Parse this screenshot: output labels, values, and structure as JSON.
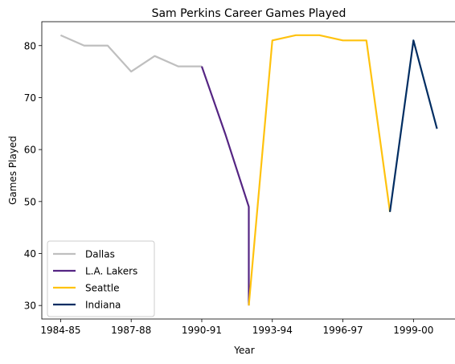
{
  "chart_data": {
    "type": "line",
    "title": "Sam Perkins Career Games Played",
    "xlabel": "Year",
    "ylabel": "Games Played",
    "ylim": [
      27.4,
      84.6
    ],
    "grid": false,
    "legend_position": "lower-left",
    "x_ticks": [
      "1984-85",
      "1987-88",
      "1990-91",
      "1993-94",
      "1996-97",
      "1999-00"
    ],
    "y_ticks": [
      30,
      40,
      50,
      60,
      70,
      80
    ],
    "series": [
      {
        "name": "Dallas",
        "color": "#bfbfbf",
        "x": [
          "1984-85",
          "1985-86",
          "1986-87",
          "1987-88",
          "1988-89",
          "1989-90",
          "1990-91"
        ],
        "values": [
          82,
          80,
          80,
          75,
          78,
          76,
          76
        ]
      },
      {
        "name": "L.A. Lakers",
        "color": "#552583",
        "x": [
          "1990-91",
          "1991-92",
          "1992-93",
          "1992-93"
        ],
        "values": [
          76,
          63,
          49,
          30
        ]
      },
      {
        "name": "Seattle",
        "color": "#ffc20e",
        "x": [
          "1992-93",
          "1993-94",
          "1994-95",
          "1995-96",
          "1996-97",
          "1997-98",
          "1998-99"
        ],
        "values": [
          30,
          81,
          82,
          82,
          81,
          81,
          48
        ]
      },
      {
        "name": "Indiana",
        "color": "#002d62",
        "x": [
          "1998-99",
          "1999-00",
          "2000-01"
        ],
        "values": [
          48,
          81,
          64
        ]
      }
    ]
  }
}
